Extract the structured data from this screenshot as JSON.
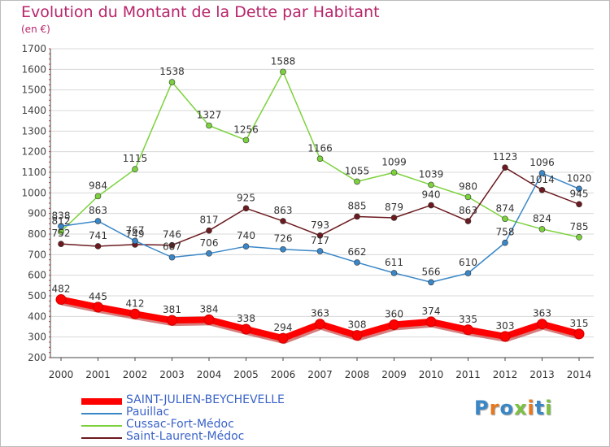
{
  "title": "Evolution du Montant de la Dette par Habitant",
  "unit_label": "(en €)",
  "chart_data": {
    "type": "line",
    "x": [
      "2000",
      "2001",
      "2002",
      "2003",
      "2004",
      "2005",
      "2006",
      "2007",
      "2008",
      "2009",
      "2010",
      "2011",
      "2012",
      "2013",
      "2014"
    ],
    "ylim": [
      200,
      1700
    ],
    "yticks": [
      200,
      300,
      400,
      500,
      600,
      700,
      800,
      900,
      1000,
      1100,
      1200,
      1300,
      1400,
      1500,
      1600,
      1700
    ],
    "grid": "horizontal",
    "legend_position": "bottom-left",
    "series": [
      {
        "name": "SAINT-JULIEN-BEYCHEVELLE",
        "color": "#ff0000",
        "values": [
          482,
          445,
          412,
          381,
          384,
          338,
          294,
          363,
          308,
          360,
          374,
          335,
          303,
          363,
          315
        ]
      },
      {
        "name": "Pauillac",
        "color": "#3a87c8",
        "values": [
          838,
          863,
          767,
          687,
          706,
          740,
          726,
          717,
          662,
          611,
          566,
          610,
          758,
          1096,
          1020
        ]
      },
      {
        "name": "Cussac-Fort-Médoc",
        "color": "#7cd23c",
        "values": [
          812,
          984,
          1115,
          1538,
          1327,
          1256,
          1588,
          1166,
          1055,
          1099,
          1039,
          980,
          874,
          824,
          785
        ]
      },
      {
        "name": "Saint-Laurent-Médoc",
        "color": "#6b1a1f",
        "values": [
          752,
          741,
          749,
          746,
          817,
          925,
          863,
          793,
          885,
          879,
          940,
          863,
          1123,
          1014,
          945
        ]
      }
    ]
  },
  "logo": {
    "letters": [
      "P",
      "r",
      "o",
      "x",
      "i",
      "t",
      "i"
    ],
    "colors": [
      "#3a87c8",
      "#e8781e",
      "#3a87c8",
      "#7cc242",
      "#e8781e",
      "#3a87c8",
      "#7cc242"
    ]
  }
}
